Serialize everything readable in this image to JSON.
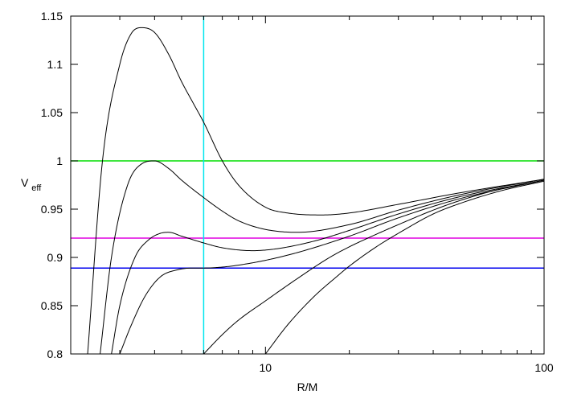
{
  "chart_data": {
    "type": "line",
    "title": "",
    "xlabel": "R/M",
    "ylabel": "V",
    "ylabel_subscript": "eff",
    "x_scale": "log",
    "xlim": [
      2,
      100
    ],
    "ylim": [
      0.8,
      1.15
    ],
    "grid": false,
    "x_ticks": [
      {
        "value": 10,
        "label": "10"
      },
      {
        "value": 100,
        "label": "100"
      }
    ],
    "x_minor_ticks": [
      2,
      3,
      4,
      5,
      6,
      7,
      8,
      9,
      20,
      30,
      40,
      50,
      60,
      70,
      80,
      90
    ],
    "y_ticks": [
      {
        "value": 0.8,
        "label": "0.8"
      },
      {
        "value": 0.85,
        "label": "0.85"
      },
      {
        "value": 0.9,
        "label": "0.9"
      },
      {
        "value": 0.95,
        "label": "0.95"
      },
      {
        "value": 1.0,
        "label": "1"
      },
      {
        "value": 1.05,
        "label": "1.05"
      },
      {
        "value": 1.1,
        "label": "1.1"
      },
      {
        "value": 1.15,
        "label": "1.15"
      }
    ],
    "series": [
      {
        "color": "#000000",
        "x": [
          2.3,
          2.6,
          3.0,
          3.3,
          3.6,
          4.0,
          4.5,
          5.0,
          5.5,
          6.0,
          7.0,
          8.0,
          10.0,
          12.0,
          16.0,
          20.0,
          30.0,
          50.0,
          100.0
        ],
        "y": [
          0.8,
          1.0,
          1.1,
          1.132,
          1.138,
          1.133,
          1.11,
          1.082,
          1.06,
          1.04,
          1.0,
          0.975,
          0.952,
          0.946,
          0.944,
          0.946,
          0.955,
          0.967,
          0.981
        ]
      },
      {
        "color": "#000000",
        "x": [
          2.55,
          2.8,
          3.2,
          3.6,
          4.0,
          4.5,
          5.0,
          6.0,
          7.0,
          8.0,
          10.0,
          13.0,
          20.0,
          30.0,
          50.0,
          100.0
        ],
        "y": [
          0.8,
          0.9,
          0.975,
          0.997,
          1.0,
          0.992,
          0.98,
          0.962,
          0.948,
          0.938,
          0.929,
          0.926,
          0.934,
          0.949,
          0.965,
          0.981
        ]
      },
      {
        "color": "#000000",
        "x": [
          2.8,
          3.0,
          3.4,
          3.8,
          4.2,
          4.5,
          5.0,
          6.0,
          7.0,
          9.0,
          11.0,
          15.0,
          20.0,
          30.0,
          50.0,
          100.0
        ],
        "y": [
          0.8,
          0.85,
          0.9,
          0.918,
          0.925,
          0.926,
          0.922,
          0.915,
          0.91,
          0.907,
          0.909,
          0.917,
          0.928,
          0.945,
          0.963,
          0.98
        ]
      },
      {
        "color": "#000000",
        "x": [
          3.0,
          3.3,
          3.7,
          4.2,
          4.8,
          5.5,
          6.0,
          7.0,
          8.0,
          10.0,
          13.0,
          20.0,
          30.0,
          50.0,
          100.0
        ],
        "y": [
          0.8,
          0.83,
          0.86,
          0.88,
          0.887,
          0.889,
          0.889,
          0.89,
          0.892,
          0.897,
          0.905,
          0.922,
          0.941,
          0.961,
          0.98
        ]
      },
      {
        "color": "#000000",
        "x": [
          6.0,
          7.0,
          8.0,
          10.0,
          13.0,
          17.0,
          20.0,
          25.0,
          30.0,
          40.0,
          50.0,
          70.0,
          100.0
        ],
        "y": [
          0.8,
          0.82,
          0.835,
          0.855,
          0.878,
          0.9,
          0.911,
          0.924,
          0.934,
          0.949,
          0.959,
          0.971,
          0.98
        ]
      },
      {
        "color": "#000000",
        "x": [
          10.0,
          12.0,
          15.0,
          18.0,
          20.0,
          25.0,
          30.0,
          40.0,
          50.0,
          70.0,
          100.0
        ],
        "y": [
          0.8,
          0.83,
          0.86,
          0.88,
          0.891,
          0.911,
          0.925,
          0.945,
          0.956,
          0.969,
          0.979
        ]
      }
    ],
    "reference_lines": [
      {
        "orientation": "horizontal",
        "value": 1.0,
        "color": "#00dd00"
      },
      {
        "orientation": "horizontal",
        "value": 0.92,
        "color": "#e000e0"
      },
      {
        "orientation": "horizontal",
        "value": 0.889,
        "color": "#0000ee"
      },
      {
        "orientation": "vertical",
        "value": 6.0,
        "color": "#00e5ee"
      }
    ]
  }
}
